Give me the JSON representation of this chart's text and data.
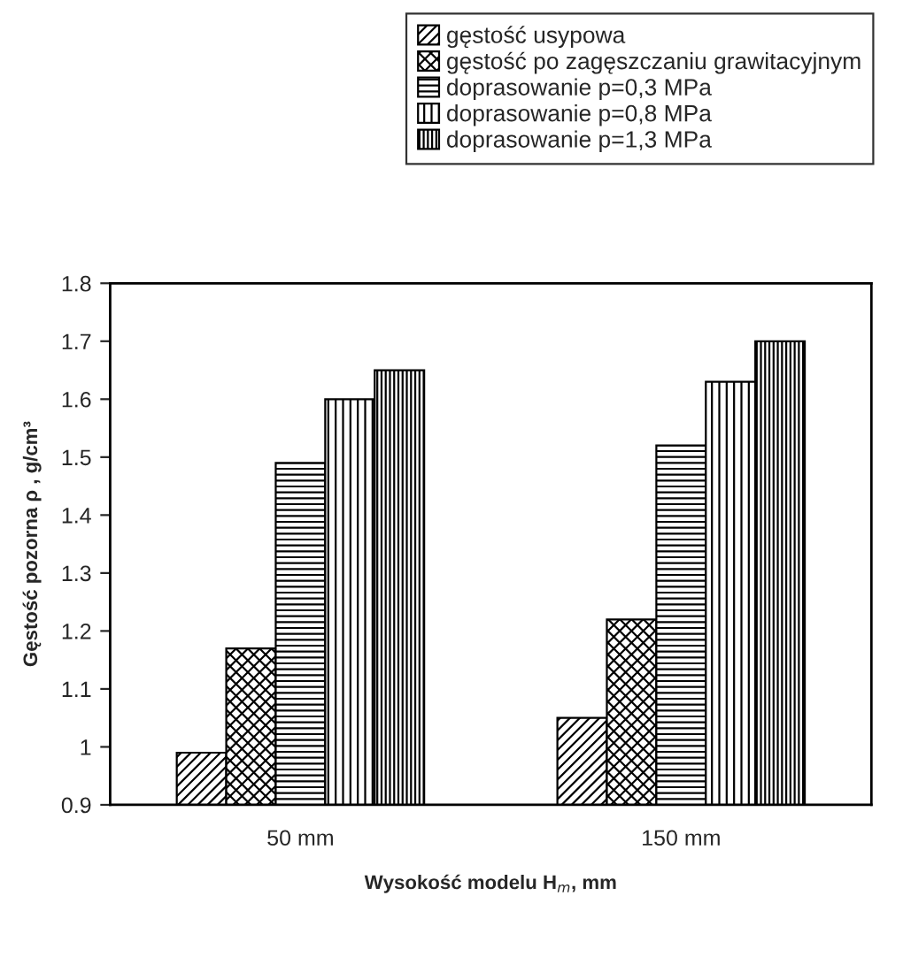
{
  "chart_data": {
    "type": "bar",
    "xlabel": "Wysokość modelu H$_{m}$, mm",
    "ylabel": "Gęstość pozorna ρ , g/cm³",
    "categories": [
      "50 mm",
      "150 mm"
    ],
    "series": [
      {
        "name": "gęstość usypowa",
        "color": "#000000",
        "values": [
          0.99,
          1.05
        ]
      },
      {
        "name": "gęstość po zagęszczaniu grawitacyjnym",
        "color": "#000000",
        "values": [
          1.17,
          1.22
        ]
      },
      {
        "name": "doprasowanie p=0,3 MPa",
        "color": "#000000",
        "values": [
          1.49,
          1.52
        ]
      },
      {
        "name": "doprasowanie p=0,8 MPa",
        "color": "#000000",
        "values": [
          1.6,
          1.63
        ]
      },
      {
        "name": "doprasowanie p=1,3 MPa",
        "color": "#000000",
        "values": [
          1.65,
          1.7
        ]
      }
    ],
    "ylim": [
      0.9,
      1.8
    ],
    "yticks": [
      0.9,
      1,
      1.1,
      1.2,
      1.3,
      1.4,
      1.5,
      1.6,
      1.7,
      1.8
    ],
    "grid": false,
    "legend": "top"
  }
}
